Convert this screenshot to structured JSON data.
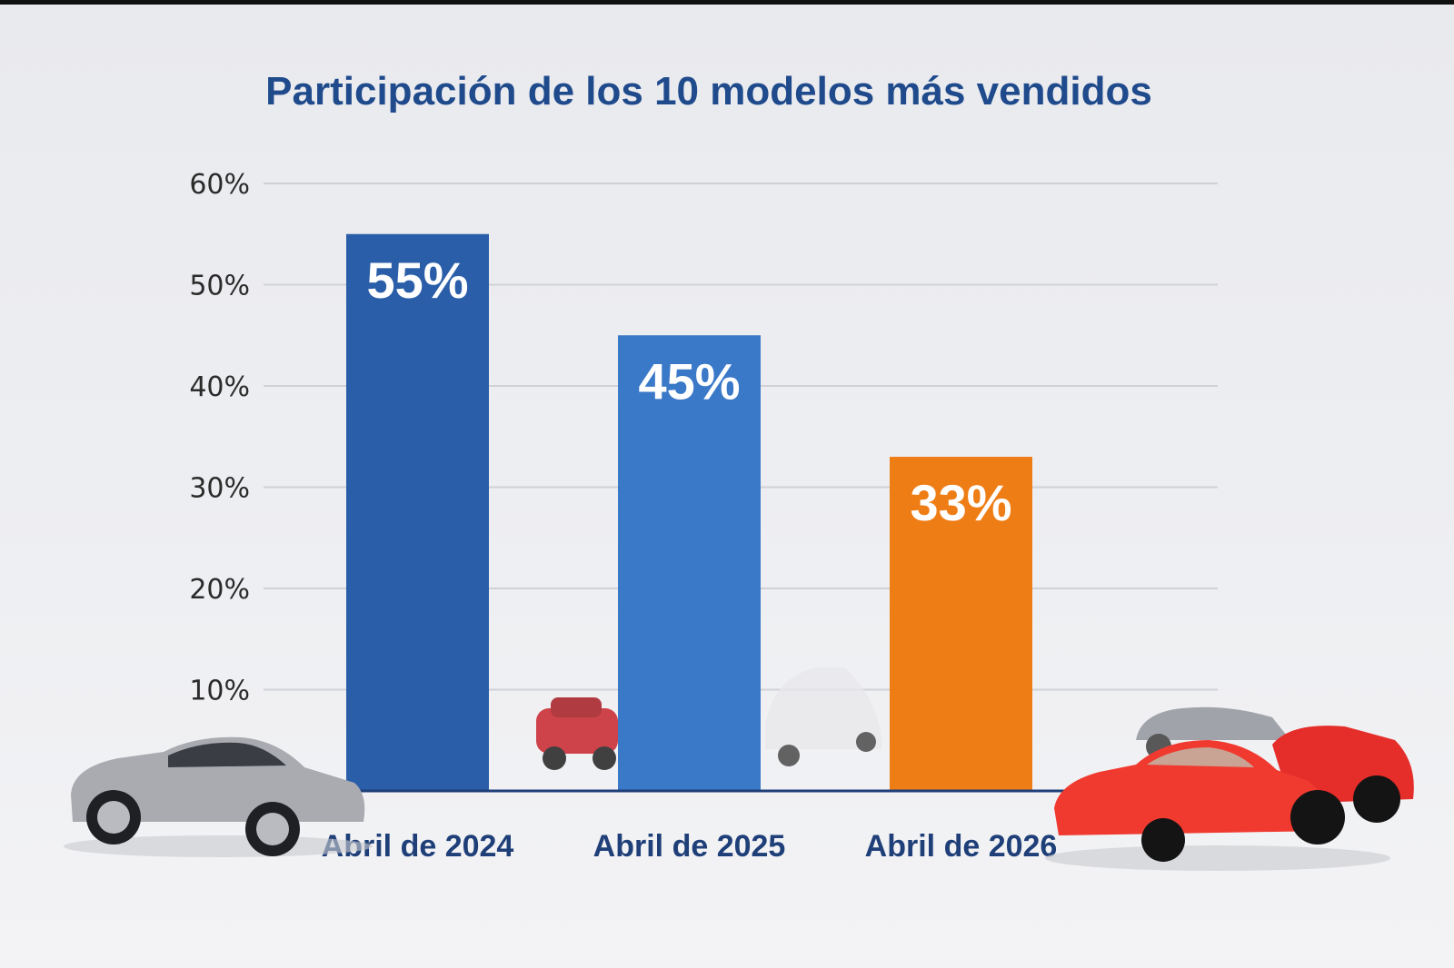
{
  "chart_data": {
    "type": "bar",
    "title": "Participación de los 10 modelos más vendidos",
    "categories": [
      "Abril de 2024",
      "Abril de 2025",
      "Abril de 2026"
    ],
    "values": [
      55,
      45,
      33
    ],
    "data_labels": [
      "55%",
      "45%",
      "33%"
    ],
    "bar_colors": [
      "#2a5ea8",
      "#3a78c8",
      "#ef7d16"
    ],
    "yticks": [
      "10%",
      "20%",
      "30%",
      "40%",
      "50%",
      "60%"
    ],
    "ylim": [
      0,
      60
    ],
    "xlabel": "",
    "ylabel": "",
    "grid": true,
    "legend": "none"
  }
}
